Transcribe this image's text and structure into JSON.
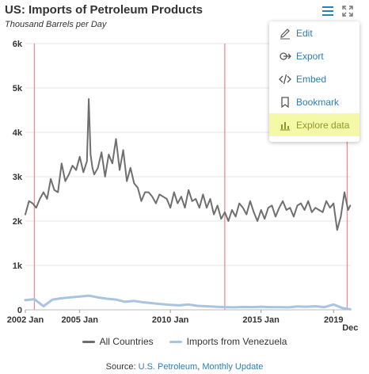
{
  "header": {
    "title": "US: Imports of Petroleum Products",
    "subtitle": "Thousand Barrels per Day"
  },
  "toolbar": {
    "menu_icon": "hamburger-menu-icon",
    "expand_icon": "expand-arrows-icon"
  },
  "menu": {
    "items": [
      {
        "label": "Edit",
        "icon": "pencil-icon"
      },
      {
        "label": "Export",
        "icon": "export-icon"
      },
      {
        "label": "Embed",
        "icon": "code-icon"
      },
      {
        "label": "Bookmark",
        "icon": "bookmark-icon"
      },
      {
        "label": "Explore data",
        "icon": "bar-chart-icon",
        "highlighted": true
      }
    ]
  },
  "source": {
    "prefix": "Source: ",
    "link1": "U.S. Petroleum",
    "sep": ", ",
    "link2": "Monthly Update"
  },
  "colors": {
    "all_countries": "#6f6f6f",
    "venezuela": "#a9c4de",
    "recession_line": "#ef8c95",
    "grid": "#e4e4e4",
    "accent": "#2a7fb8",
    "highlight": "#f4f9a8"
  },
  "chart_data": {
    "type": "line",
    "title": "US: Imports of Petroleum Products",
    "subtitle": "Thousand Barrels per Day",
    "xlabel": "",
    "ylabel": "",
    "ylim": [
      0,
      6000
    ],
    "xlim": [
      2002.0,
      2019.95
    ],
    "y_ticks": [
      {
        "value": 0,
        "label": "0"
      },
      {
        "value": 1000,
        "label": "1k"
      },
      {
        "value": 2000,
        "label": "2k"
      },
      {
        "value": 3000,
        "label": "3k"
      },
      {
        "value": 4000,
        "label": "4k"
      },
      {
        "value": 5000,
        "label": "5k"
      },
      {
        "value": 6000,
        "label": "6k"
      }
    ],
    "x_ticks": [
      {
        "value": 2002.0,
        "label": "2002 Jan"
      },
      {
        "value": 2005.0,
        "label": "2005 Jan"
      },
      {
        "value": 2010.0,
        "label": "2010 Jan"
      },
      {
        "value": 2015.0,
        "label": "2015 Jan"
      },
      {
        "value": 2019.0,
        "label": "2019"
      }
    ],
    "x_end_label": {
      "value": 2019.92,
      "label": "Dec"
    },
    "vertical_markers": [
      2002.5,
      2013.0,
      2019.75
    ],
    "grid": true,
    "legend_position": "bottom",
    "series": [
      {
        "name": "All Countries",
        "x": [
          2002.0,
          2002.2,
          2002.4,
          2002.6,
          2002.8,
          2003.0,
          2003.2,
          2003.4,
          2003.6,
          2003.8,
          2004.0,
          2004.2,
          2004.4,
          2004.6,
          2004.8,
          2005.0,
          2005.2,
          2005.4,
          2005.5,
          2005.6,
          2005.7,
          2005.8,
          2006.0,
          2006.2,
          2006.4,
          2006.6,
          2006.8,
          2007.0,
          2007.2,
          2007.4,
          2007.6,
          2007.8,
          2008.0,
          2008.2,
          2008.4,
          2008.6,
          2008.8,
          2009.0,
          2009.2,
          2009.4,
          2009.6,
          2009.8,
          2010.0,
          2010.2,
          2010.4,
          2010.6,
          2010.8,
          2011.0,
          2011.2,
          2011.4,
          2011.6,
          2011.8,
          2012.0,
          2012.2,
          2012.4,
          2012.6,
          2012.8,
          2013.0,
          2013.2,
          2013.4,
          2013.6,
          2013.8,
          2014.0,
          2014.2,
          2014.4,
          2014.6,
          2014.8,
          2015.0,
          2015.2,
          2015.4,
          2015.6,
          2015.8,
          2016.0,
          2016.2,
          2016.4,
          2016.6,
          2016.8,
          2017.0,
          2017.2,
          2017.4,
          2017.6,
          2017.8,
          2018.0,
          2018.2,
          2018.4,
          2018.6,
          2018.8,
          2019.0,
          2019.2,
          2019.4,
          2019.6,
          2019.8,
          2019.92
        ],
        "values": [
          2150,
          2450,
          2400,
          2300,
          2500,
          2650,
          2500,
          2950,
          2700,
          2650,
          3300,
          2900,
          3050,
          3250,
          3150,
          3450,
          3100,
          3350,
          4750,
          3500,
          3200,
          3050,
          3200,
          3550,
          3000,
          3500,
          3300,
          3850,
          3150,
          3600,
          2900,
          3200,
          2850,
          2750,
          2450,
          2650,
          2650,
          2550,
          2400,
          2600,
          2550,
          2500,
          2300,
          2650,
          2400,
          2550,
          2300,
          2700,
          2450,
          2500,
          2300,
          2600,
          2300,
          2500,
          2150,
          2350,
          2050,
          2200,
          2000,
          2250,
          2100,
          2400,
          2300,
          2150,
          2450,
          2200,
          2000,
          2250,
          2050,
          2300,
          2350,
          2100,
          2300,
          2450,
          2250,
          2300,
          2100,
          2350,
          2400,
          2250,
          2450,
          2200,
          2300,
          2250,
          2200,
          2450,
          2300,
          2400,
          1800,
          2100,
          2650,
          2250,
          2350
        ]
      },
      {
        "name": "Imports from Venezuela",
        "x": [
          2002.0,
          2002.5,
          2003.0,
          2003.5,
          2004.0,
          2004.5,
          2005.0,
          2005.5,
          2006.0,
          2006.5,
          2007.0,
          2007.5,
          2008.0,
          2008.5,
          2009.0,
          2009.5,
          2010.0,
          2010.5,
          2011.0,
          2011.5,
          2012.0,
          2012.5,
          2013.0,
          2013.5,
          2014.0,
          2014.5,
          2015.0,
          2015.5,
          2016.0,
          2016.5,
          2017.0,
          2017.5,
          2018.0,
          2018.5,
          2019.0,
          2019.5,
          2019.92
        ],
        "values": [
          220,
          240,
          80,
          230,
          260,
          280,
          300,
          320,
          280,
          250,
          230,
          180,
          200,
          170,
          150,
          130,
          110,
          100,
          120,
          90,
          80,
          70,
          60,
          55,
          65,
          60,
          70,
          60,
          60,
          55,
          75,
          70,
          80,
          60,
          120,
          40,
          10
        ]
      }
    ]
  }
}
